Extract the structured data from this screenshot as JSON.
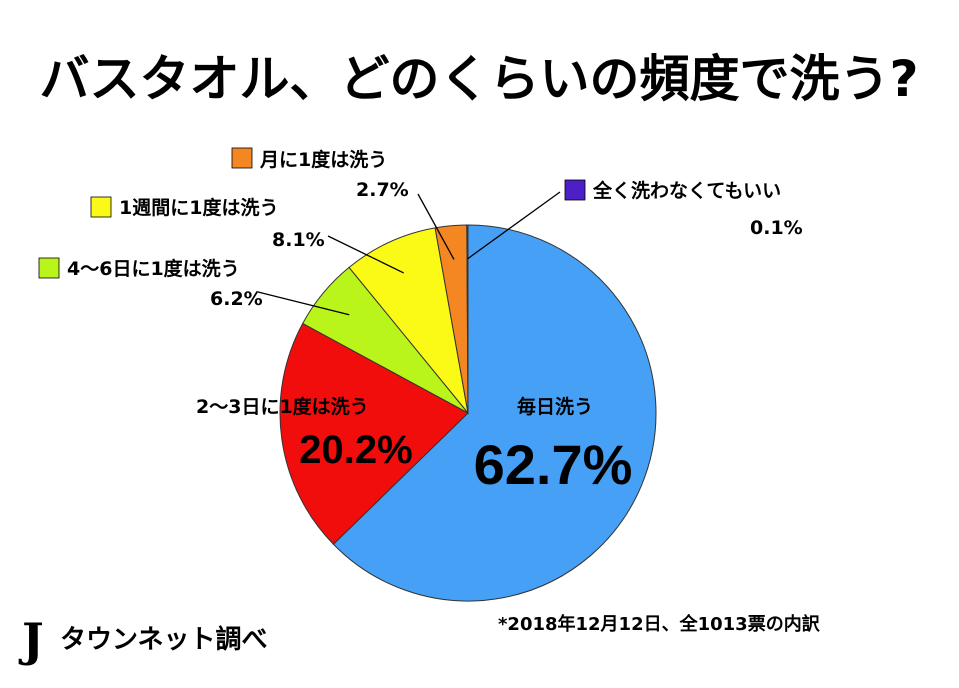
{
  "chart_data": {
    "type": "pie",
    "title": "バスタオル、どのくらいの頻度で洗う?",
    "slices": [
      {
        "label": "毎日洗う",
        "value": 62.7,
        "value_label": "62.7%",
        "color": "#46A0F5"
      },
      {
        "label": "2〜3日に1度は洗う",
        "value": 20.2,
        "value_label": "20.2%",
        "color": "#F20D0D"
      },
      {
        "label": "4〜6日に1度は洗う",
        "value": 6.2,
        "value_label": "6.2%",
        "color": "#B9F51B"
      },
      {
        "label": "1週間に1度は洗う",
        "value": 8.1,
        "value_label": "8.1%",
        "color": "#FAFA16"
      },
      {
        "label": "月に1度は洗う",
        "value": 2.7,
        "value_label": "2.7%",
        "color": "#F58723"
      },
      {
        "label": "全く洗わなくてもいい",
        "value": 0.1,
        "value_label": "0.1%",
        "color": "#4C1FC7"
      }
    ]
  },
  "source": {
    "brand_initial": "J",
    "brand_text": "タウンネット調べ",
    "note": "*2018年12月12日、全1013票の内訳"
  }
}
